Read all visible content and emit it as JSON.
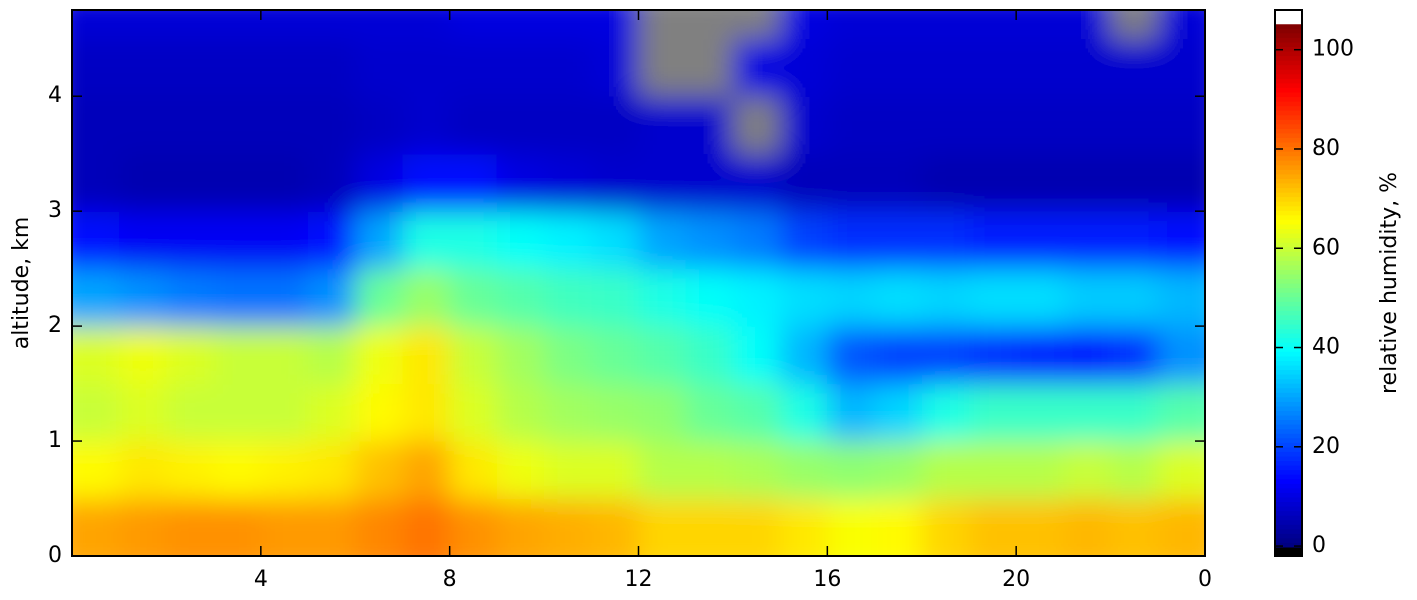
{
  "chart_data": {
    "type": "heatmap",
    "y_label": "altitude, km",
    "colorbar_label": "relative humidity, %",
    "xlim": [
      0,
      24
    ],
    "xticks": [
      4,
      8,
      12,
      16,
      20,
      {
        "value": 24,
        "label": "0"
      }
    ],
    "ylim": [
      0,
      4.75
    ],
    "yticks": [
      0,
      1,
      2,
      3,
      4
    ],
    "x_bins": [
      0,
      1,
      2,
      3,
      4,
      5,
      6,
      7,
      8,
      9,
      10,
      11,
      12,
      13,
      14,
      15,
      16,
      17,
      18,
      19,
      20,
      21,
      22,
      23,
      24
    ],
    "y_bins": [
      0,
      0.5,
      1,
      1.5,
      2,
      2.5,
      3,
      3.5,
      4,
      4.5,
      4.75
    ],
    "z": [
      [
        75,
        76,
        77,
        77,
        76,
        76,
        78,
        80,
        77,
        75,
        74,
        73,
        70,
        70,
        70,
        68,
        65,
        66,
        70,
        72,
        72,
        73,
        72,
        73
      ],
      [
        66,
        68,
        67,
        66,
        67,
        68,
        72,
        75,
        68,
        64,
        62,
        62,
        58,
        58,
        57,
        55,
        54,
        55,
        58,
        58,
        58,
        60,
        58,
        62
      ],
      [
        60,
        62,
        60,
        60,
        60,
        62,
        66,
        68,
        62,
        58,
        56,
        55,
        54,
        50,
        48,
        42,
        32,
        35,
        42,
        45,
        45,
        45,
        45,
        48
      ],
      [
        62,
        64,
        62,
        60,
        60,
        58,
        64,
        68,
        60,
        56,
        52,
        50,
        48,
        45,
        40,
        32,
        22,
        20,
        20,
        18,
        16,
        14,
        18,
        28
      ],
      [
        30,
        28,
        26,
        25,
        25,
        28,
        50,
        55,
        50,
        48,
        46,
        45,
        42,
        40,
        38,
        36,
        35,
        36,
        35,
        36,
        36,
        34,
        34,
        32
      ],
      [
        14,
        12,
        12,
        12,
        12,
        14,
        30,
        42,
        42,
        40,
        38,
        36,
        30,
        28,
        26,
        20,
        18,
        18,
        18,
        16,
        16,
        16,
        16,
        14
      ],
      [
        6,
        5,
        5,
        5,
        5,
        6,
        10,
        14,
        14,
        10,
        9,
        8,
        8,
        8,
        8,
        6,
        6,
        6,
        5,
        5,
        5,
        5,
        5,
        5
      ],
      [
        6,
        6,
        6,
        6,
        6,
        6,
        7,
        8,
        7,
        7,
        7,
        7,
        8,
        8,
        null,
        8,
        7,
        7,
        7,
        7,
        7,
        7,
        7,
        7
      ],
      [
        7,
        7,
        7,
        7,
        7,
        7,
        8,
        8,
        8,
        8,
        8,
        9,
        null,
        null,
        10,
        9,
        8,
        8,
        8,
        8,
        8,
        8,
        8,
        8
      ],
      [
        9,
        9,
        9,
        9,
        9,
        9,
        9,
        9,
        10,
        10,
        10,
        10,
        null,
        null,
        null,
        10,
        9,
        9,
        9,
        9,
        9,
        9,
        null,
        9
      ]
    ],
    "missing_color": "#808080",
    "colormap": "jet",
    "vmin": 0,
    "vmax": 105,
    "colorbar_lim": [
      -2,
      108
    ],
    "colorbar_ticks": [
      0,
      20,
      40,
      60,
      80,
      100
    ]
  }
}
